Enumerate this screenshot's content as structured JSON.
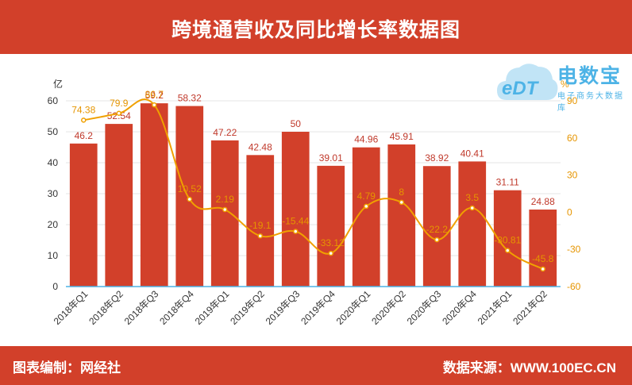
{
  "title": "跨境通营收及同比增长率数据图",
  "footer": {
    "left": "图表编制：网经社",
    "right": "数据来源：WWW.100EC.CN"
  },
  "logo": {
    "text": "电数宝",
    "sub": "电子商务大数据库",
    "mark": "eDT"
  },
  "chart_data": {
    "type": "bar+line",
    "categories": [
      "2018年Q1",
      "2018年Q2",
      "2018年Q3",
      "2018年Q4",
      "2019年Q1",
      "2019年Q2",
      "2019年Q3",
      "2019年Q4",
      "2020年Q1",
      "2020年Q2",
      "2020年Q3",
      "2020年Q4",
      "2021年Q1",
      "2021年Q2"
    ],
    "y_left": {
      "unit": "亿",
      "ticks": [
        0,
        10,
        20,
        30,
        40,
        50,
        60
      ],
      "range": [
        0,
        60
      ]
    },
    "y_right": {
      "unit": "%",
      "ticks": [
        -60,
        -30,
        0,
        30,
        60,
        90
      ],
      "range": [
        -60,
        90
      ]
    },
    "series": [
      {
        "axis": "left",
        "kind": "bar",
        "color": "#d2402a",
        "values": [
          46.2,
          52.54,
          59.2,
          58.32,
          47.22,
          42.48,
          50,
          39.01,
          44.96,
          45.91,
          38.92,
          40.41,
          31.11,
          24.88
        ],
        "labels": [
          "46.2",
          "52.54",
          "59.2",
          "58.32",
          "47.22",
          "42.48",
          "50",
          "39.01",
          "44.96",
          "45.91",
          "38.92",
          "40.41",
          "31.11",
          "24.88"
        ]
      },
      {
        "axis": "right",
        "kind": "line",
        "color": "#f0a000",
        "values": [
          74.38,
          79.9,
          86.7,
          10.52,
          2.19,
          -19.1,
          -15.44,
          -33.12,
          4.79,
          8,
          -22.2,
          3.5,
          -30.81,
          -45.8
        ],
        "labels": [
          "74.38",
          "79.9",
          "86.7",
          "10.52",
          "2.19",
          "-19.1",
          "-15.44",
          "-33.12",
          "4.79",
          "8",
          "-22.2",
          "3.5",
          "-30.81",
          "-45.8"
        ]
      }
    ]
  }
}
